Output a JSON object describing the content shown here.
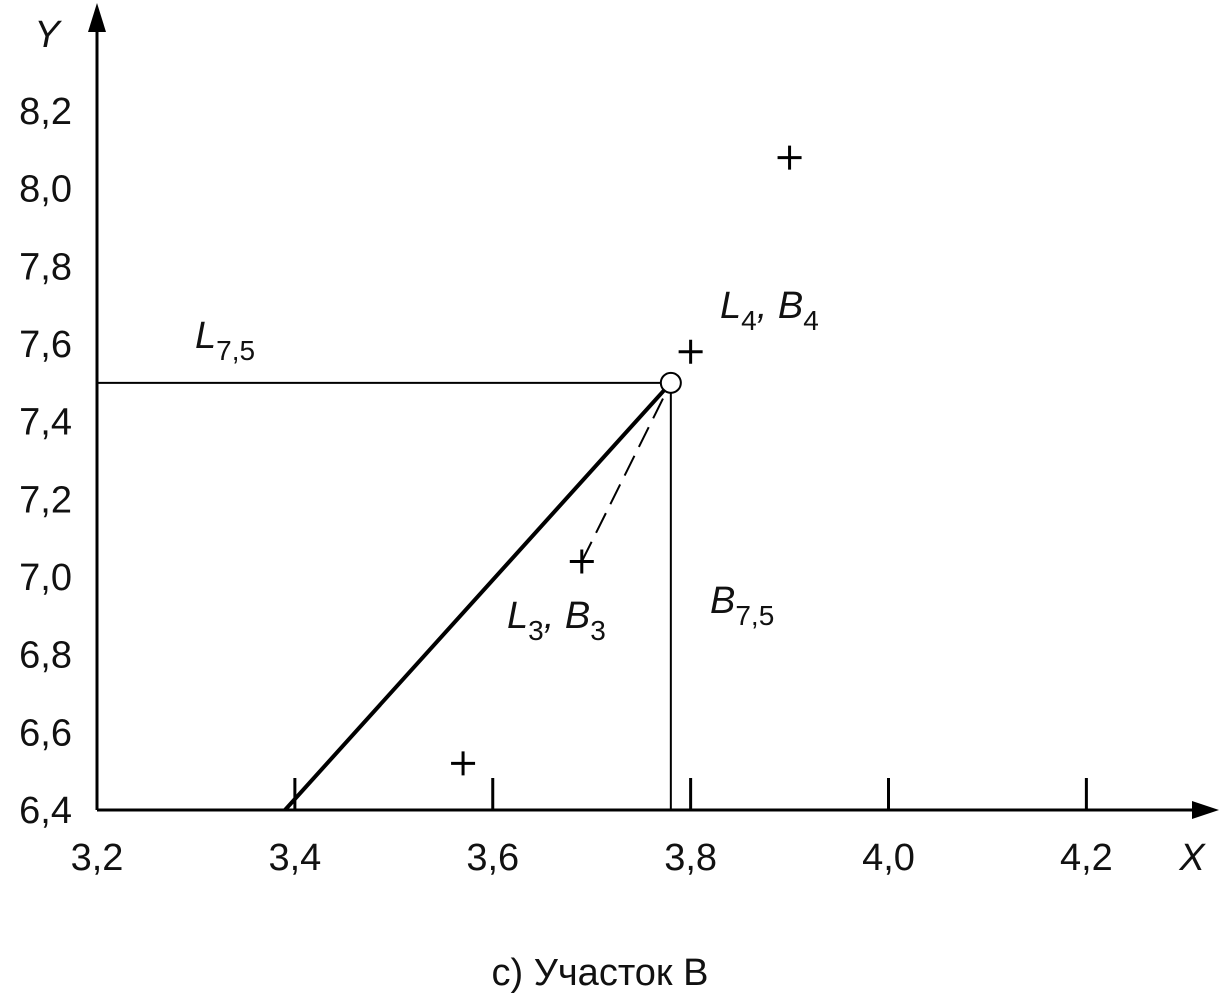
{
  "chart_data": {
    "type": "scatter",
    "xlabel": "X",
    "ylabel": "Y",
    "caption": "c)  Участок В",
    "xlim": [
      3.2,
      4.33
    ],
    "ylim": [
      6.4,
      8.46
    ],
    "xticks": [
      {
        "value": 3.2,
        "label": "3,2"
      },
      {
        "value": 3.4,
        "label": "3,4"
      },
      {
        "value": 3.6,
        "label": "3,6"
      },
      {
        "value": 3.8,
        "label": "3,8"
      },
      {
        "value": 4.0,
        "label": "4,0"
      },
      {
        "value": 4.2,
        "label": "4,2"
      }
    ],
    "yticks": [
      {
        "value": 6.4,
        "label": "6,4"
      },
      {
        "value": 6.6,
        "label": "6,6"
      },
      {
        "value": 6.8,
        "label": "6,8"
      },
      {
        "value": 7.0,
        "label": "7,0"
      },
      {
        "value": 7.2,
        "label": "7,2"
      },
      {
        "value": 7.4,
        "label": "7,4"
      },
      {
        "value": 7.6,
        "label": "7,6"
      },
      {
        "value": 7.8,
        "label": "7,8"
      },
      {
        "value": 8.0,
        "label": "8,0"
      },
      {
        "value": 8.2,
        "label": "8,2"
      }
    ],
    "grid": false,
    "color": "#000000",
    "points": {
      "x": [
        3.9,
        3.8,
        3.69,
        3.57
      ],
      "y": [
        8.08,
        7.58,
        7.04,
        6.52
      ],
      "marker": "plus"
    },
    "target": {
      "x": [
        3.78
      ],
      "y": [
        7.5
      ],
      "marker": "circle"
    },
    "lines": [
      {
        "x": [
          3.2,
          3.78
        ],
        "y": [
          7.5,
          7.5
        ],
        "style": "solid",
        "width": 2
      },
      {
        "x": [
          3.78,
          3.78
        ],
        "y": [
          7.5,
          6.4
        ],
        "style": "solid",
        "width": 2
      },
      {
        "x": [
          3.39,
          3.78
        ],
        "y": [
          6.4,
          7.5
        ],
        "style": "solid",
        "width": 4
      },
      {
        "x": [
          3.69,
          3.78
        ],
        "y": [
          7.04,
          7.5
        ],
        "style": "dashed",
        "width": 2
      }
    ],
    "annotations": [
      [
        [
          "L",
          "7,5"
        ]
      ],
      [
        [
          "L",
          "4"
        ],
        [
          ", B",
          "4"
        ]
      ],
      [
        [
          "L",
          "3"
        ],
        [
          ", B",
          "3"
        ]
      ],
      [
        [
          "B",
          "7,5"
        ]
      ]
    ]
  }
}
